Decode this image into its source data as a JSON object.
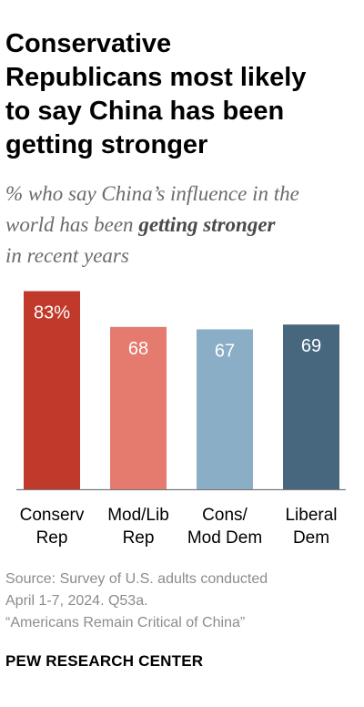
{
  "title": {
    "lines": [
      "Conservative",
      "Republicans most likely",
      "to say China has been",
      "getting stronger"
    ]
  },
  "subtitle": {
    "line1": "% who say China’s influence in the",
    "line2_prefix": "world has been ",
    "line2_emphasis": "getting stronger",
    "line3": "in recent years"
  },
  "chart_data": {
    "type": "bar",
    "categories": [
      [
        "Conserv",
        "Rep"
      ],
      [
        "Mod/Lib",
        "Rep"
      ],
      [
        "Cons/",
        "Mod Dem"
      ],
      [
        "Liberal",
        "Dem"
      ]
    ],
    "values": [
      83,
      68,
      67,
      69
    ],
    "value_labels": [
      "83%",
      "68",
      "67",
      "69"
    ],
    "colors": [
      "#c0392b",
      "#e57b6e",
      "#8aaec6",
      "#47677f"
    ],
    "ylim": [
      0,
      100
    ],
    "grid": false,
    "xlabel": "",
    "ylabel": ""
  },
  "footer": {
    "source_lines": [
      "Source: Survey of U.S. adults conducted",
      "April 1-7, 2024. Q53a.",
      "“Americans Remain Critical of China”"
    ],
    "brand": "PEW RESEARCH CENTER"
  }
}
